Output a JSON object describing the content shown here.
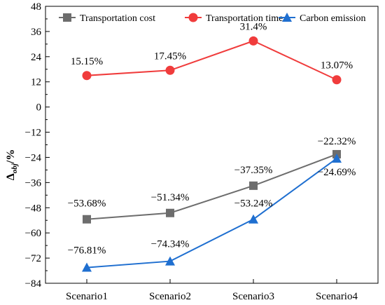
{
  "chart_data": {
    "type": "line",
    "categories": [
      "Scenario1",
      "Scenario2",
      "Scenario3",
      "Scenario4"
    ],
    "ylabel": {
      "main": "Δ",
      "sub": "obj",
      "suffix": "/%"
    },
    "ylim": [
      -84,
      48
    ],
    "yticks": [
      48,
      36,
      24,
      12,
      0,
      -12,
      -24,
      -36,
      -48,
      -60,
      -72,
      -84
    ],
    "legend_position": "top",
    "grid": false,
    "series": [
      {
        "name": "Transportation cost",
        "color": "#6d6d6d",
        "marker": "square",
        "values": [
          -53.68,
          -51.34,
          -37.35,
          -22.32
        ],
        "plot_y": [
          -53.5,
          -50.5,
          -37.5,
          -22.5
        ],
        "labels": [
          "−53.68%",
          "−51.34%",
          "−37.35%",
          "−22.32%"
        ],
        "label_position": "above"
      },
      {
        "name": "Transportation time",
        "color": "#f03c3c",
        "marker": "circle",
        "values": [
          15.15,
          17.45,
          31.4,
          13.07
        ],
        "plot_y": [
          15,
          17.5,
          31.5,
          13
        ],
        "labels": [
          "15.15%",
          "17.45%",
          "31.4%",
          "13.07%"
        ],
        "label_position": "above"
      },
      {
        "name": "Carbon emission",
        "color": "#1f6fd0",
        "marker": "triangle",
        "values": [
          -76.81,
          -74.34,
          -53.24,
          -24.69
        ],
        "plot_y": [
          -76.5,
          -73.5,
          -53.5,
          -24.5
        ],
        "labels": [
          "−76.81%",
          "−74.34%",
          "−53.24%",
          "−24.69%"
        ],
        "label_position": "above"
      }
    ]
  }
}
